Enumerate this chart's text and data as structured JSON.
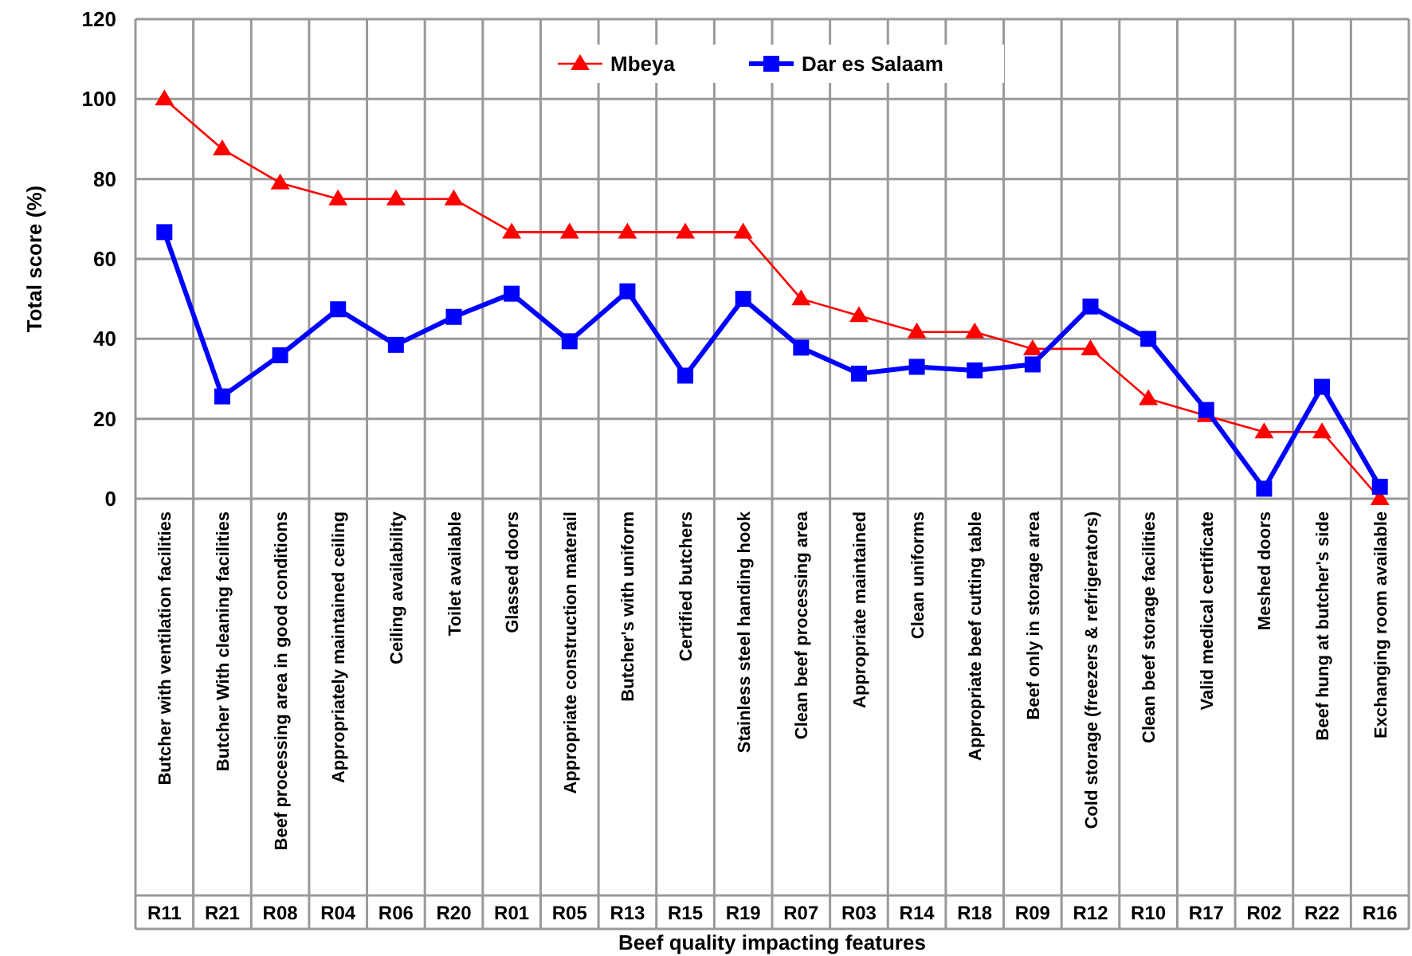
{
  "chart_data": {
    "type": "line",
    "xlabel": "Beef quality impacting features",
    "ylabel": "Total score (%)",
    "categories": [
      "Butcher with ventilation facilities",
      "Butcher With cleaning facilities",
      "Beef processing area in good conditions",
      "Appropriately maintained ceiling",
      "Ceiling availability",
      "Toilet available",
      "Glassed doors",
      "Appropriate construction materail",
      "Butcher's with uniform",
      "Certified butchers",
      "Stainless steel handing hook",
      "Clean beef processing area",
      "Appropriate maintained",
      "Clean uniforms",
      "Appropriate beef cutting table",
      "Beef only in storage area",
      "Cold storage (freezers & refrigerators)",
      "Clean beef storage facilities",
      "Valid medical certificate",
      "Meshed doors",
      "Beef hung at butcher's side",
      "Exchanging room available"
    ],
    "annotations": [
      "R11",
      "R21",
      "R08",
      "R04",
      "R06",
      "R20",
      "R01",
      "R05",
      "R13",
      "R15",
      "R19",
      "R07",
      "R03",
      "R14",
      "R18",
      "R09",
      "R12",
      "R10",
      "R17",
      "R02",
      "R22",
      "R16"
    ],
    "series": [
      {
        "name": "Mbeya",
        "color": "#ff0000",
        "marker": "triangle",
        "values": [
          100,
          87.5,
          79,
          75,
          75,
          75,
          66.7,
          66.7,
          66.7,
          66.7,
          66.7,
          50,
          45.8,
          41.7,
          41.7,
          37.5,
          37.5,
          25,
          20.8,
          16.7,
          16.7,
          0
        ]
      },
      {
        "name": "Dar es Salaam",
        "color": "#0000ff",
        "marker": "square",
        "values": [
          66.7,
          25.6,
          35.9,
          47.4,
          38.5,
          45.5,
          51.3,
          39.4,
          51.9,
          30.8,
          50,
          37.8,
          31.3,
          33,
          32.1,
          33.6,
          48.1,
          40,
          22.2,
          2.5,
          28,
          3
        ]
      }
    ],
    "ylim": [
      0,
      120
    ],
    "yticks": [
      0,
      20,
      40,
      60,
      80,
      100,
      120
    ],
    "grid": true,
    "legend": "top"
  }
}
